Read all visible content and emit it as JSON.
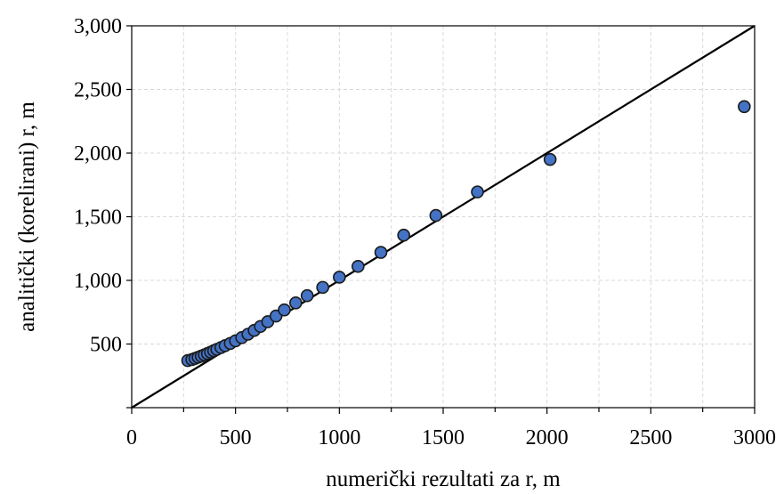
{
  "chart_data": {
    "type": "scatter",
    "title": "",
    "xlabel": "numerički rezultati za r, m",
    "ylabel": "analitički (korelirani) r, m",
    "xlim": [
      0,
      3000
    ],
    "ylim": [
      0,
      3000
    ],
    "x_ticks": [
      "0",
      "500",
      "1000",
      "1500",
      "2000",
      "2500",
      "3000"
    ],
    "y_ticks": [
      "500",
      "1,000",
      "1,500",
      "2,000",
      "2,500",
      "3,000"
    ],
    "grid": true,
    "legend": "none",
    "reference_line": {
      "from": [
        0,
        0
      ],
      "to": [
        3000,
        3000
      ],
      "color": "#000000"
    },
    "marker_color": "#4472c4",
    "series": [
      {
        "points": [
          [
            270,
            370
          ],
          [
            290,
            378
          ],
          [
            305,
            387
          ],
          [
            320,
            396
          ],
          [
            335,
            405
          ],
          [
            350,
            415
          ],
          [
            365,
            425
          ],
          [
            380,
            436
          ],
          [
            395,
            447
          ],
          [
            410,
            458
          ],
          [
            430,
            472
          ],
          [
            450,
            487
          ],
          [
            475,
            505
          ],
          [
            500,
            525
          ],
          [
            530,
            550
          ],
          [
            560,
            577
          ],
          [
            590,
            607
          ],
          [
            620,
            638
          ],
          [
            655,
            675
          ],
          [
            695,
            720
          ],
          [
            735,
            768
          ],
          [
            790,
            823
          ],
          [
            845,
            880
          ],
          [
            920,
            945
          ],
          [
            1000,
            1025
          ],
          [
            1090,
            1110
          ],
          [
            1200,
            1220
          ],
          [
            1310,
            1355
          ],
          [
            1465,
            1510
          ],
          [
            1665,
            1695
          ],
          [
            2015,
            1950
          ],
          [
            2950,
            2365
          ]
        ]
      }
    ]
  }
}
